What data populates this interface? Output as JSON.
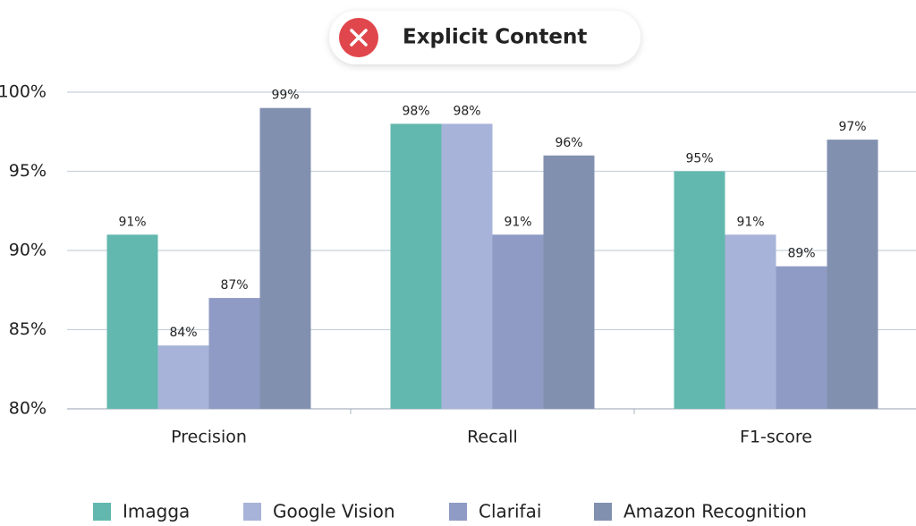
{
  "chart_data": {
    "type": "bar",
    "title": "Explicit Content",
    "categories": [
      "Precision",
      "Recall",
      "F1-score"
    ],
    "series": [
      {
        "name": "Imagga",
        "color": "#62b8ae",
        "values": [
          91,
          98,
          95
        ],
        "value_labels": [
          "91%",
          "98%",
          "95%"
        ]
      },
      {
        "name": "Google Vision",
        "color": "#a8b3d9",
        "values": [
          84,
          98,
          91
        ],
        "value_labels": [
          "84%",
          "98%",
          "91%"
        ]
      },
      {
        "name": "Clarifai",
        "color": "#8f9bc4",
        "values": [
          87,
          91,
          89
        ],
        "value_labels": [
          "87%",
          "91%",
          "89%"
        ]
      },
      {
        "name": "Amazon Recognition",
        "color": "#8290b0",
        "values": [
          99,
          96,
          97
        ],
        "value_labels": [
          "99%",
          "96%",
          "97%"
        ]
      }
    ],
    "ylim": [
      80,
      100
    ],
    "yticks": [
      {
        "value": 80,
        "label": "80%"
      },
      {
        "value": 85,
        "label": "85%"
      },
      {
        "value": 90,
        "label": "90%"
      },
      {
        "value": 95,
        "label": "95%"
      },
      {
        "value": 100,
        "label": "100%"
      }
    ],
    "grid": true,
    "legend": "bottom"
  }
}
